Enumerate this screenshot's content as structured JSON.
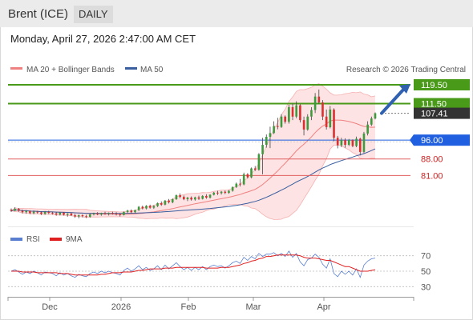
{
  "header": {
    "instrument": "Brent (ICE)",
    "period": "DAILY"
  },
  "timestamp": "Monday, April 27, 2026 2:47:00 AM CET",
  "legend": {
    "ma20": "MA 20 + Bollinger Bands",
    "ma50": "MA 50",
    "source": "Research © 2026 Trading Central"
  },
  "rsi_legend": {
    "rsi": "RSI",
    "ma9": "9MA"
  },
  "colors": {
    "ma20": "#f08080",
    "ma50": "#3a5fa0",
    "up": "#3d9a3d",
    "down": "#d93030",
    "resistance": "#4a9a1a",
    "pivot": "#1f5fe0",
    "support": "#e06060",
    "current": "#333333"
  },
  "chart_data": [
    {
      "type": "candlestick",
      "ylim": [
        63,
        126
      ],
      "x_ticks": [
        "Dec",
        "2026",
        "Feb",
        "Mar",
        "Apr"
      ],
      "price_levels": [
        {
          "value": 119.5,
          "label": "119.50",
          "kind": "resistance"
        },
        {
          "value": 111.5,
          "label": "111.50",
          "kind": "resistance"
        },
        {
          "value": 107.41,
          "label": "107.41",
          "kind": "current"
        },
        {
          "value": 96.0,
          "label": "96.00",
          "kind": "pivot"
        },
        {
          "value": 88.0,
          "label": "88.00",
          "kind": "support"
        },
        {
          "value": 81.0,
          "label": "81.00",
          "kind": "support"
        }
      ],
      "projection": {
        "from": 107.41,
        "to": 119.5,
        "direction": "up"
      },
      "candles": [
        [
          0,
          66.5,
          67.0,
          65.5,
          66.0
        ],
        [
          1,
          66.0,
          67.5,
          65.8,
          66.8
        ],
        [
          2,
          66.8,
          67.2,
          65.6,
          66.0
        ],
        [
          3,
          66.0,
          66.5,
          64.9,
          65.4
        ],
        [
          4,
          65.4,
          66.3,
          64.7,
          65.9
        ],
        [
          5,
          65.9,
          66.2,
          64.6,
          65.0
        ],
        [
          6,
          65.0,
          66.1,
          64.5,
          65.6
        ],
        [
          7,
          65.6,
          66.0,
          64.8,
          65.3
        ],
        [
          8,
          65.3,
          65.8,
          64.2,
          64.7
        ],
        [
          9,
          64.7,
          65.9,
          64.3,
          65.5
        ],
        [
          10,
          65.5,
          66.0,
          64.6,
          65.1
        ],
        [
          11,
          65.1,
          65.6,
          64.4,
          64.9
        ],
        [
          12,
          64.9,
          65.5,
          63.9,
          64.4
        ],
        [
          13,
          64.4,
          65.4,
          64.0,
          65.2
        ],
        [
          14,
          65.2,
          65.5,
          64.0,
          64.3
        ],
        [
          15,
          64.3,
          65.0,
          63.5,
          64.8
        ],
        [
          16,
          64.8,
          65.2,
          63.8,
          64.1
        ],
        [
          17,
          64.1,
          64.7,
          63.0,
          63.6
        ],
        [
          18,
          63.6,
          64.4,
          62.8,
          64.1
        ],
        [
          19,
          64.1,
          64.5,
          63.2,
          63.7
        ],
        [
          20,
          63.7,
          64.3,
          62.9,
          63.4
        ],
        [
          21,
          63.4,
          64.7,
          63.1,
          64.5
        ],
        [
          22,
          64.5,
          65.2,
          64.0,
          64.9
        ],
        [
          23,
          64.9,
          65.4,
          64.1,
          64.4
        ],
        [
          24,
          64.4,
          65.2,
          63.9,
          65.0
        ],
        [
          25,
          65.0,
          65.6,
          64.3,
          64.7
        ],
        [
          26,
          64.7,
          65.3,
          64.0,
          65.1
        ],
        [
          27,
          65.1,
          65.6,
          64.4,
          64.8
        ],
        [
          28,
          64.8,
          65.4,
          64.0,
          64.5
        ],
        [
          29,
          64.5,
          65.0,
          63.6,
          64.2
        ],
        [
          30,
          64.2,
          65.7,
          64.0,
          65.5
        ],
        [
          31,
          65.5,
          66.4,
          65.0,
          66.1
        ],
        [
          32,
          66.1,
          66.6,
          65.0,
          65.4
        ],
        [
          33,
          65.4,
          66.5,
          65.1,
          66.3
        ],
        [
          34,
          66.3,
          68.0,
          65.9,
          67.7
        ],
        [
          35,
          67.7,
          68.2,
          66.6,
          67.0
        ],
        [
          36,
          67.0,
          68.4,
          66.6,
          68.1
        ],
        [
          37,
          68.1,
          68.6,
          66.9,
          67.3
        ],
        [
          38,
          67.3,
          68.4,
          66.8,
          68.0
        ],
        [
          39,
          68.0,
          69.5,
          67.6,
          69.2
        ],
        [
          40,
          69.2,
          70.0,
          68.1,
          68.6
        ],
        [
          41,
          68.6,
          70.6,
          68.3,
          70.3
        ],
        [
          42,
          70.3,
          71.0,
          69.1,
          69.6
        ],
        [
          43,
          69.6,
          71.2,
          69.2,
          70.9
        ],
        [
          44,
          70.9,
          72.9,
          70.6,
          72.6
        ],
        [
          45,
          72.6,
          73.4,
          71.3,
          71.9
        ],
        [
          46,
          71.9,
          72.5,
          70.5,
          70.9
        ],
        [
          47,
          70.9,
          71.9,
          70.1,
          71.6
        ],
        [
          48,
          71.6,
          72.1,
          70.3,
          70.8
        ],
        [
          49,
          70.8,
          72.0,
          70.3,
          71.7
        ],
        [
          50,
          71.7,
          72.4,
          70.6,
          71.1
        ],
        [
          51,
          71.1,
          72.6,
          70.8,
          72.3
        ],
        [
          52,
          72.3,
          73.0,
          71.1,
          71.6
        ],
        [
          53,
          71.6,
          73.0,
          71.2,
          72.8
        ],
        [
          54,
          72.8,
          74.0,
          72.5,
          73.7
        ],
        [
          55,
          73.7,
          74.5,
          72.7,
          73.5
        ],
        [
          56,
          73.5,
          74.4,
          72.9,
          74.1
        ],
        [
          57,
          74.1,
          74.6,
          73.1,
          73.6
        ],
        [
          58,
          73.6,
          74.8,
          73.2,
          74.5
        ],
        [
          59,
          74.5,
          76.3,
          74.1,
          76.1
        ],
        [
          60,
          76.1,
          78.0,
          75.7,
          77.5
        ],
        [
          61,
          77.5,
          79.5,
          76.3,
          77.2
        ],
        [
          62,
          77.2,
          82.2,
          76.8,
          81.5
        ],
        [
          63,
          81.5,
          82.0,
          79.7,
          80.2
        ],
        [
          64,
          80.2,
          84.4,
          79.8,
          84.0
        ],
        [
          65,
          84.0,
          85.0,
          82.9,
          83.4
        ],
        [
          66,
          83.4,
          90.5,
          83.0,
          90.0
        ],
        [
          67,
          90.0,
          97.0,
          81.5,
          94.0
        ],
        [
          68,
          94.0,
          98.4,
          92.8,
          97.4
        ],
        [
          69,
          97.4,
          101.7,
          92.6,
          99.0
        ],
        [
          70,
          99.0,
          104.0,
          98.6,
          102.0
        ],
        [
          71,
          102.0,
          105.5,
          100.6,
          101.6
        ],
        [
          72,
          101.6,
          107.0,
          101.2,
          106.0
        ],
        [
          73,
          106.0,
          106.5,
          103.0,
          103.8
        ],
        [
          74,
          103.8,
          111.0,
          103.0,
          110.0
        ],
        [
          75,
          110.0,
          111.5,
          104.5,
          106.0
        ],
        [
          76,
          106.0,
          112.5,
          105.3,
          110.8
        ],
        [
          77,
          110.8,
          111.2,
          103.5,
          104.5
        ],
        [
          78,
          104.5,
          106.0,
          98.0,
          100.5
        ],
        [
          79,
          100.5,
          107.0,
          100.0,
          106.0
        ],
        [
          80,
          106.0,
          110.0,
          104.5,
          108.8
        ],
        [
          81,
          108.8,
          116.0,
          107.5,
          114.5
        ],
        [
          82,
          114.5,
          117.5,
          111.5,
          112.0
        ],
        [
          83,
          112.0,
          113.0,
          104.5,
          106.0
        ],
        [
          84,
          106.0,
          109.0,
          100.5,
          101.5
        ],
        [
          85,
          101.5,
          110.5,
          101.0,
          109.0
        ],
        [
          86,
          109.0,
          109.5,
          95.5,
          97.0
        ],
        [
          87,
          97.0,
          97.8,
          92.5,
          93.8
        ],
        [
          88,
          93.8,
          97.0,
          93.0,
          96.1
        ],
        [
          89,
          96.1,
          96.8,
          92.8,
          94.0
        ],
        [
          90,
          94.0,
          96.5,
          93.5,
          96.1
        ],
        [
          91,
          96.1,
          96.3,
          93.0,
          93.5
        ],
        [
          92,
          93.5,
          97.5,
          93.0,
          96.6
        ],
        [
          93,
          96.6,
          97.0,
          89.5,
          91.0
        ],
        [
          94,
          91.0,
          99.5,
          90.5,
          98.8
        ],
        [
          95,
          98.8,
          104.0,
          98.0,
          102.6
        ],
        [
          96,
          102.6,
          106.0,
          102.0,
          105.2
        ],
        [
          97,
          105.2,
          107.8,
          104.8,
          107.41
        ]
      ]
    },
    {
      "type": "line",
      "name": "RSI",
      "ylim": [
        20,
        80
      ],
      "y_ticks": [
        70,
        50,
        30
      ],
      "series": [
        {
          "name": "RSI",
          "values": [
            50,
            52,
            49,
            46,
            49,
            47,
            50,
            48,
            45,
            49,
            48,
            47,
            44,
            48,
            45,
            47,
            44,
            42,
            46,
            44,
            43,
            47,
            49,
            47,
            50,
            48,
            50,
            48,
            47,
            45,
            51,
            54,
            50,
            53,
            57,
            52,
            55,
            51,
            53,
            57,
            52,
            58,
            53,
            57,
            61,
            56,
            52,
            55,
            51,
            55,
            52,
            56,
            52,
            56,
            58,
            56,
            57,
            54,
            57,
            61,
            63,
            60,
            68,
            64,
            69,
            66,
            73,
            69,
            72,
            72,
            74,
            70,
            73,
            69,
            76,
            68,
            73,
            62,
            57,
            65,
            67,
            72,
            68,
            59,
            54,
            66,
            47,
            43,
            50,
            46,
            50,
            45,
            53,
            42,
            58,
            63,
            66,
            67
          ]
        },
        {
          "name": "9MA",
          "values": [
            50,
            50,
            50,
            49,
            49,
            49,
            49,
            48,
            48,
            48,
            48,
            48,
            48,
            47,
            47,
            47,
            46,
            45,
            45,
            45,
            45,
            45,
            45,
            45,
            46,
            46,
            47,
            48,
            48,
            48,
            49,
            49,
            49,
            50,
            51,
            51,
            52,
            53,
            53,
            53,
            53,
            54,
            54,
            54,
            55,
            55,
            55,
            55,
            55,
            55,
            55,
            55,
            54,
            54,
            54,
            54,
            55,
            55,
            55,
            56,
            57,
            58,
            60,
            61,
            63,
            64,
            66,
            67,
            69,
            69,
            70,
            71,
            71,
            71,
            71,
            71,
            71,
            70,
            68,
            67,
            67,
            67,
            66,
            65,
            64,
            64,
            62,
            60,
            58,
            56,
            56,
            54,
            52,
            50,
            50,
            50,
            51,
            52
          ]
        }
      ]
    }
  ]
}
